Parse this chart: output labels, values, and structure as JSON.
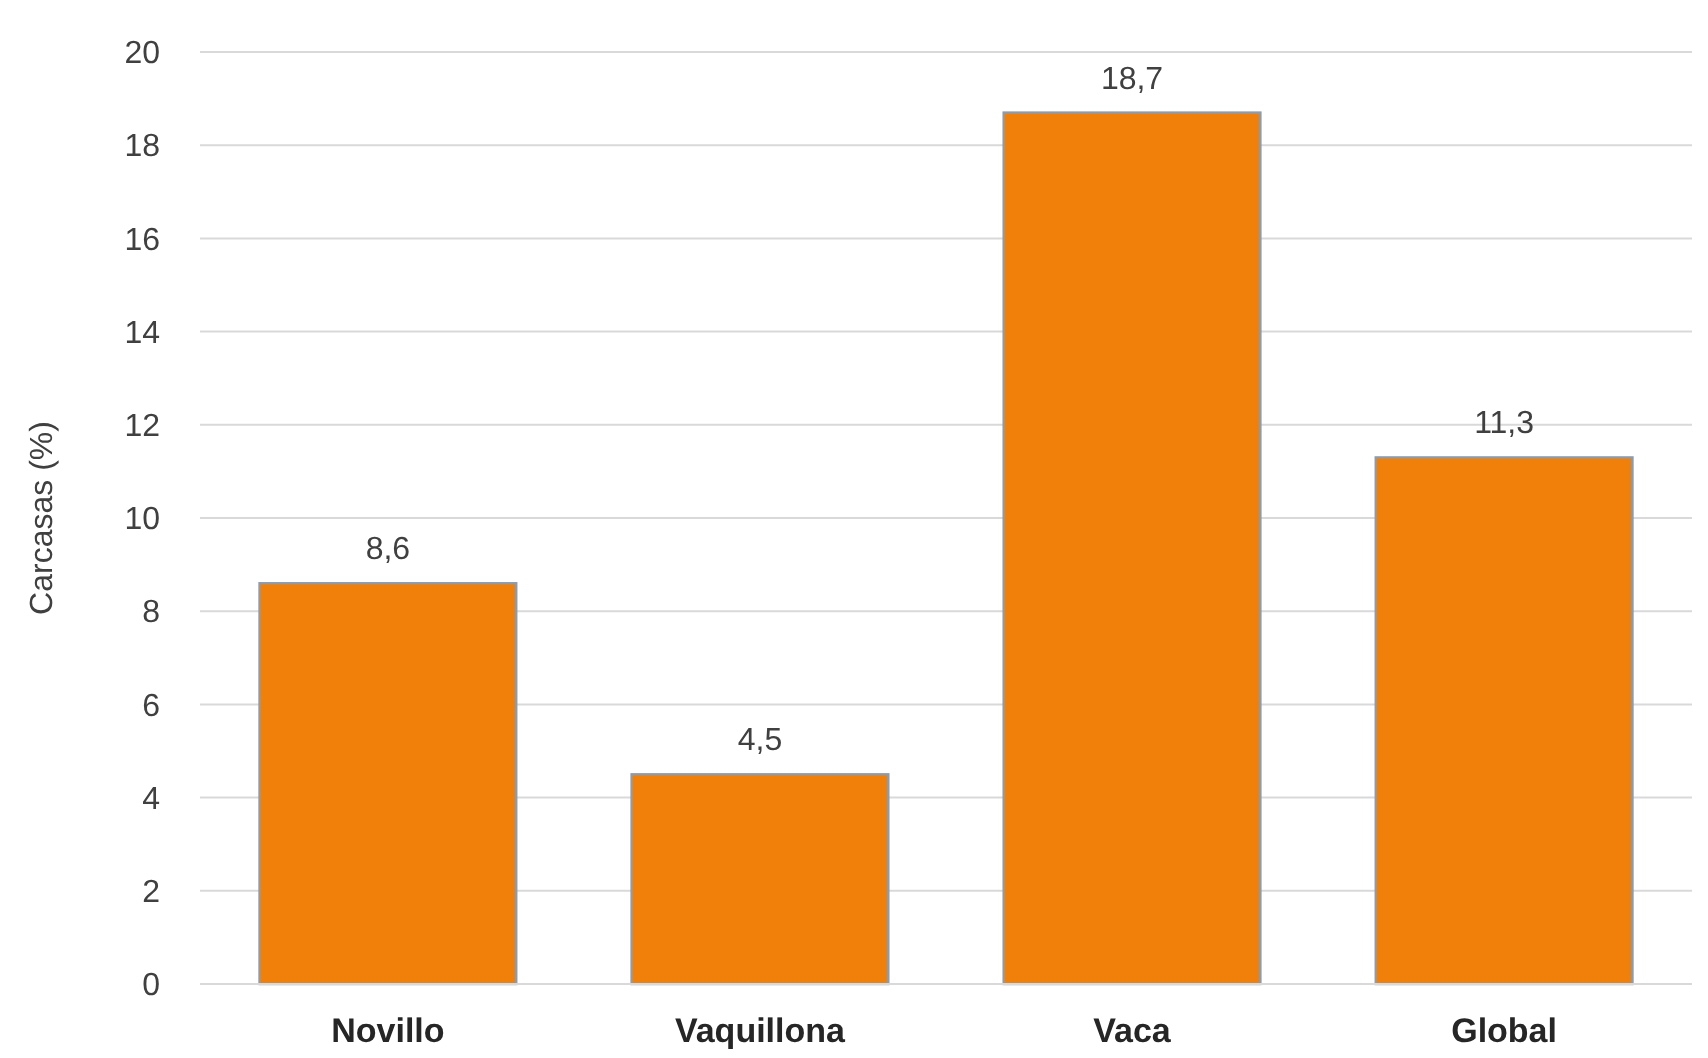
{
  "chart_data": {
    "type": "bar",
    "ylabel": "Carcasas (%)",
    "categories": [
      "Novillo",
      "Vaquillona",
      "Vaca",
      "Global"
    ],
    "values": [
      8.6,
      4.5,
      18.7,
      11.3
    ],
    "value_labels": [
      "8,6",
      "4,5",
      "18,7",
      "11,3"
    ],
    "color": "#f0800a",
    "ylim": [
      0,
      20
    ],
    "yticks": [
      0,
      2,
      4,
      6,
      8,
      10,
      12,
      14,
      16,
      18,
      20
    ],
    "grid": "y"
  }
}
